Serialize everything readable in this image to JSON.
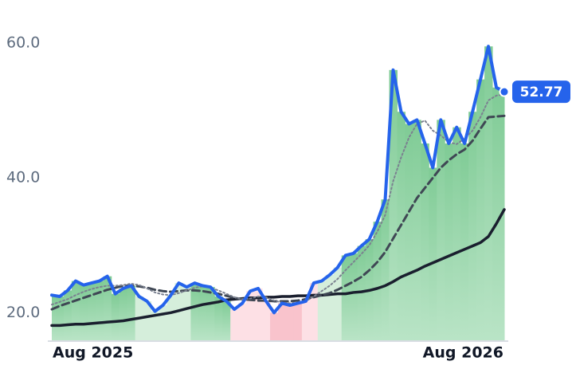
{
  "chart_data": {
    "type": "line",
    "categories": [
      "Aug 2025",
      null,
      null,
      null,
      null,
      null,
      null,
      null,
      null,
      null,
      null,
      null,
      null,
      null,
      null,
      null,
      null,
      null,
      null,
      null,
      null,
      null,
      null,
      null,
      null,
      null,
      null,
      null,
      null,
      null,
      null,
      null,
      null,
      null,
      null,
      null,
      null,
      null,
      null,
      null,
      null,
      null,
      null,
      null,
      null,
      null,
      null,
      null,
      null,
      null,
      null,
      null,
      null,
      null,
      null,
      null,
      null,
      "Aug 2026"
    ],
    "series": [
      {
        "color": "#2563eb",
        "style": "solid",
        "width": 4,
        "values": [
          22.6,
          22.4,
          23.3,
          24.7,
          24.1,
          24.4,
          24.7,
          25.4,
          22.8,
          23.6,
          24.0,
          22.4,
          21.7,
          20.2,
          21.1,
          22.6,
          24.4,
          23.8,
          24.4,
          24.0,
          23.8,
          22.4,
          21.7,
          20.5,
          21.4,
          23.2,
          23.6,
          21.7,
          20.0,
          21.4,
          21.1,
          21.4,
          21.7,
          24.4,
          24.7,
          25.6,
          26.7,
          28.5,
          28.8,
          29.9,
          30.9,
          33.5,
          36.8,
          56.0,
          49.8,
          48.0,
          48.6,
          45.1,
          41.5,
          48.6,
          45.1,
          47.5,
          45.1,
          49.8,
          54.6,
          59.5,
          53.4,
          52.77
        ]
      },
      {
        "color": "#7b8190",
        "style": "dotted",
        "width": 2,
        "values": [
          21.2,
          21.6,
          22.0,
          22.6,
          23.1,
          23.5,
          23.8,
          24.0,
          24.0,
          24.1,
          24.3,
          24.1,
          23.6,
          23.0,
          22.7,
          22.6,
          22.9,
          23.3,
          23.7,
          23.9,
          23.7,
          23.3,
          22.8,
          22.3,
          22.0,
          22.1,
          22.4,
          22.3,
          21.8,
          21.5,
          21.4,
          21.5,
          21.7,
          22.4,
          23.2,
          24.0,
          25.0,
          26.3,
          27.5,
          28.7,
          30.0,
          32.0,
          34.5,
          39.5,
          43.0,
          46.0,
          48.0,
          48.5,
          47.0,
          46.3,
          45.3,
          45.0,
          45.8,
          47.0,
          49.0,
          51.5,
          52.2,
          52.4
        ]
      },
      {
        "color": "#3f4754",
        "style": "dashed",
        "width": 3,
        "values": [
          20.5,
          21.0,
          21.4,
          21.8,
          22.2,
          22.6,
          23.0,
          23.4,
          23.7,
          24.0,
          24.0,
          23.9,
          23.7,
          23.4,
          23.2,
          23.1,
          23.2,
          23.3,
          23.3,
          23.2,
          23.0,
          22.8,
          22.5,
          22.2,
          22.0,
          21.9,
          21.8,
          21.8,
          21.7,
          21.7,
          21.7,
          21.8,
          22.0,
          22.3,
          22.6,
          22.9,
          23.4,
          24.0,
          24.6,
          25.3,
          26.3,
          27.5,
          29.0,
          31.0,
          33.0,
          35.0,
          37.0,
          38.5,
          40.0,
          41.5,
          42.6,
          43.5,
          44.2,
          45.5,
          47.3,
          49.0,
          49.1,
          49.2
        ]
      },
      {
        "color": "#1a1f2e",
        "style": "solid",
        "width": 3.5,
        "values": [
          18.1,
          18.1,
          18.2,
          18.3,
          18.3,
          18.4,
          18.5,
          18.6,
          18.7,
          18.8,
          19.0,
          19.2,
          19.4,
          19.6,
          19.8,
          20.0,
          20.3,
          20.6,
          20.9,
          21.2,
          21.4,
          21.6,
          21.9,
          22.0,
          22.1,
          22.2,
          22.2,
          22.3,
          22.3,
          22.4,
          22.4,
          22.5,
          22.5,
          22.6,
          22.6,
          22.7,
          22.8,
          22.8,
          23.0,
          23.1,
          23.3,
          23.6,
          24.0,
          24.6,
          25.3,
          25.8,
          26.3,
          26.9,
          27.4,
          27.9,
          28.4,
          28.9,
          29.4,
          29.9,
          30.4,
          31.3,
          33.2,
          35.3
        ]
      }
    ],
    "area_color": "#8fd3a4",
    "bands": [
      {
        "start": 11,
        "end": 18,
        "color": "#d5eedb"
      },
      {
        "start": 23,
        "end": 28,
        "color": "#fde0e5"
      },
      {
        "start": 28,
        "end": 32,
        "color": "#f9c3cc"
      },
      {
        "start": 32,
        "end": 34,
        "color": "#fde0e5"
      },
      {
        "start": 34,
        "end": 37,
        "color": "#d5eedb"
      }
    ],
    "ylim": [
      15.9,
      61.7
    ],
    "yticks": [
      {
        "value": 20,
        "label": "20.0"
      },
      {
        "value": 40,
        "label": "40.0"
      },
      {
        "value": 60,
        "label": "60.0"
      }
    ]
  }
}
